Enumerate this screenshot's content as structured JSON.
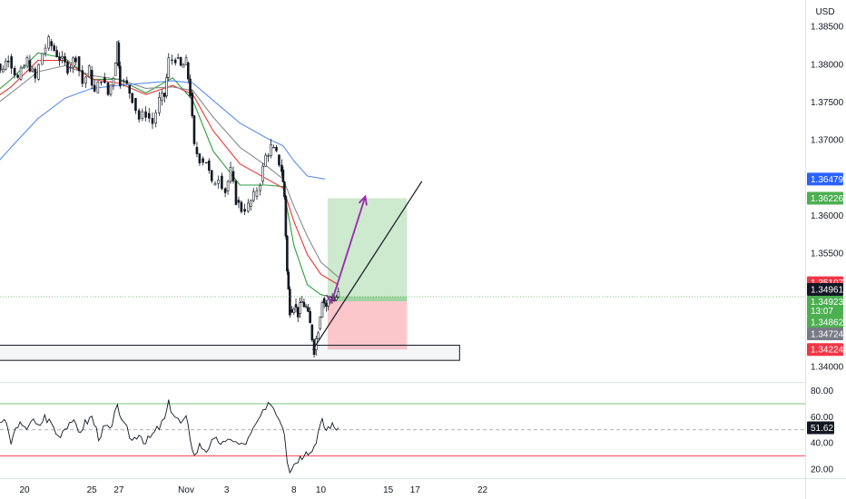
{
  "currency": "USD",
  "chart_data": [
    {
      "type": "candlestick",
      "title": "",
      "currency_label": "USD",
      "price_scale_ticks": [
        1.385,
        1.38,
        1.375,
        1.37,
        1.365,
        1.36,
        1.355,
        1.35,
        1.345,
        1.34
      ],
      "price_scale_labels": [
        "1.38500",
        "1.38000",
        "1.37500",
        "1.37000",
        "1.36500",
        "1.36000",
        "1.35500",
        "1.35000",
        "1.34500",
        "1.34000"
      ],
      "ylim": [
        1.3383,
        1.3885
      ],
      "x_ticks": [
        {
          "day": 20,
          "label": "20"
        },
        {
          "day": 25,
          "label": "25"
        },
        {
          "day": 27,
          "label": "27"
        },
        {
          "day": 32,
          "label": "Nov"
        },
        {
          "day": 35,
          "label": "3"
        },
        {
          "day": 40,
          "label": "8"
        },
        {
          "day": 42,
          "label": "10"
        },
        {
          "day": 47,
          "label": "15"
        },
        {
          "day": 49,
          "label": "17"
        },
        {
          "day": 54,
          "label": "22"
        }
      ],
      "price_path": [
        [
          17,
          1.3795
        ],
        [
          17.5,
          1.3825
        ],
        [
          18.2,
          1.379
        ],
        [
          18.8,
          1.381
        ],
        [
          19.5,
          1.378
        ],
        [
          20.2,
          1.3805
        ],
        [
          20.8,
          1.378
        ],
        [
          21.3,
          1.3815
        ],
        [
          21.8,
          1.383
        ],
        [
          22.6,
          1.3808
        ],
        [
          23.2,
          1.3795
        ],
        [
          23.8,
          1.381
        ],
        [
          24.3,
          1.3775
        ],
        [
          24.8,
          1.3792
        ],
        [
          25.2,
          1.3762
        ],
        [
          25.7,
          1.3782
        ],
        [
          26.2,
          1.376
        ],
        [
          26.6,
          1.3785
        ],
        [
          26.9,
          1.3828
        ],
        [
          27.1,
          1.3778
        ],
        [
          27.6,
          1.3772
        ],
        [
          28,
          1.3755
        ],
        [
          28.5,
          1.3728
        ],
        [
          29.0,
          1.3735
        ],
        [
          29.5,
          1.3722
        ],
        [
          30.0,
          1.3752
        ],
        [
          30.4,
          1.3758
        ],
        [
          30.7,
          1.3805
        ],
        [
          31.2,
          1.3808
        ],
        [
          31.6,
          1.3796
        ],
        [
          32.0,
          1.3802
        ],
        [
          32.3,
          1.3762
        ],
        [
          32.6,
          1.369
        ],
        [
          33.0,
          1.3675
        ],
        [
          33.5,
          1.3672
        ],
        [
          33.9,
          1.364
        ],
        [
          34.4,
          1.3652
        ],
        [
          34.9,
          1.3632
        ],
        [
          35.3,
          1.3658
        ],
        [
          35.7,
          1.362
        ],
        [
          36.1,
          1.3608
        ],
        [
          36.6,
          1.3612
        ],
        [
          37.0,
          1.3625
        ],
        [
          37.5,
          1.3645
        ],
        [
          37.9,
          1.3678
        ],
        [
          38.3,
          1.369
        ],
        [
          38.7,
          1.368
        ],
        [
          39.1,
          1.366
        ],
        [
          39.3,
          1.3625
        ],
        [
          39.5,
          1.3525
        ],
        [
          39.7,
          1.3475
        ],
        [
          40.0,
          1.3482
        ],
        [
          40.3,
          1.347
        ],
        [
          40.6,
          1.3485
        ],
        [
          40.9,
          1.3478
        ],
        [
          41.2,
          1.3455
        ],
        [
          41.5,
          1.3422
        ],
        [
          41.8,
          1.345
        ],
        [
          42.1,
          1.349
        ],
        [
          42.4,
          1.348
        ],
        [
          42.7,
          1.3492
        ],
        [
          43.0,
          1.3488
        ],
        [
          43.3,
          1.3495
        ]
      ],
      "moving_averages": [
        {
          "color": "#2e9e3e",
          "points": [
            [
              17,
              1.375
            ],
            [
              19,
              1.378
            ],
            [
              21,
              1.3815
            ],
            [
              23,
              1.3808
            ],
            [
              25,
              1.378
            ],
            [
              27,
              1.378
            ],
            [
              29,
              1.3762
            ],
            [
              31,
              1.3782
            ],
            [
              32.5,
              1.3752
            ],
            [
              34,
              1.3685
            ],
            [
              36,
              1.364
            ],
            [
              38,
              1.364
            ],
            [
              39.2,
              1.3638
            ],
            [
              40,
              1.356
            ],
            [
              41,
              1.3508
            ],
            [
              42,
              1.3495
            ],
            [
              43.3,
              1.349
            ]
          ]
        },
        {
          "color": "#e53935",
          "points": [
            [
              17,
              1.3745
            ],
            [
              19,
              1.377
            ],
            [
              21,
              1.3805
            ],
            [
              23,
              1.3805
            ],
            [
              25,
              1.378
            ],
            [
              27,
              1.3775
            ],
            [
              29,
              1.376
            ],
            [
              31,
              1.3772
            ],
            [
              32.5,
              1.376
            ],
            [
              34,
              1.3712
            ],
            [
              36,
              1.3668
            ],
            [
              38,
              1.3648
            ],
            [
              39.2,
              1.3636
            ],
            [
              40,
              1.3592
            ],
            [
              41,
              1.3548
            ],
            [
              42,
              1.3522
            ],
            [
              43.3,
              1.3508
            ]
          ]
        },
        {
          "color": "#8a8a8a",
          "points": [
            [
              17,
              1.3735
            ],
            [
              19,
              1.3762
            ],
            [
              21,
              1.379
            ],
            [
              23,
              1.3798
            ],
            [
              25,
              1.3785
            ],
            [
              27,
              1.378
            ],
            [
              29,
              1.3768
            ],
            [
              31,
              1.377
            ],
            [
              32.5,
              1.3765
            ],
            [
              34,
              1.373
            ],
            [
              36,
              1.369
            ],
            [
              38,
              1.3665
            ],
            [
              39.2,
              1.3648
            ],
            [
              40,
              1.3612
            ],
            [
              41,
              1.3572
            ],
            [
              42,
              1.3538
            ],
            [
              43.3,
              1.3518
            ]
          ]
        },
        {
          "color": "#5b8def",
          "points": [
            [
              17,
              1.365
            ],
            [
              19,
              1.369
            ],
            [
              21,
              1.3728
            ],
            [
              23,
              1.3755
            ],
            [
              25,
              1.3768
            ],
            [
              27,
              1.3772
            ],
            [
              29,
              1.3775
            ],
            [
              31,
              1.3778
            ],
            [
              32.5,
              1.3775
            ],
            [
              34,
              1.3752
            ],
            [
              36,
              1.3722
            ],
            [
              38,
              1.3702
            ],
            [
              39.2,
              1.3692
            ],
            [
              40,
              1.3672
            ],
            [
              41,
              1.3652
            ],
            [
              42.3,
              1.3648
            ]
          ]
        }
      ],
      "trade_position": {
        "entry": 1.34862,
        "target": 1.36226,
        "stop": 1.34224,
        "from_day": 42.5,
        "to_day": 48.4
      },
      "support_zone": {
        "top": 1.3428,
        "bottom": 1.3408,
        "from_day": 17,
        "to_day": 52.3
      },
      "trendline": {
        "from": [
          41.4,
          1.3422
        ],
        "to": [
          49.5,
          1.3645
        ]
      },
      "projection_arrow": {
        "from": [
          42.8,
          1.3485
        ],
        "via": [
          43.0,
          1.3482
        ],
        "to": [
          45.3,
          1.3625
        ]
      },
      "last_price_line": 1.34923,
      "price_badges": [
        {
          "value": 1.36479,
          "label": "1.36479",
          "color": "#2962ff"
        },
        {
          "value": 1.36226,
          "label": "1.36226",
          "color": "#4caf50"
        },
        {
          "value": 1.35107,
          "label": "1.35107",
          "color": "#f23645"
        },
        {
          "value": 1.34961,
          "label": "1.34961",
          "color": "#131722"
        },
        {
          "value": 1.34862,
          "label": "1.34862",
          "color": "#4caf50"
        },
        {
          "value": 1.34724,
          "label": "1.34724",
          "color": "#787b86"
        },
        {
          "value": 1.34224,
          "label": "1.34224",
          "color": "#f23645"
        }
      ],
      "last_price_badge": {
        "value": 1.34923,
        "label": "1.34923",
        "countdown": "13:07",
        "color": "#4caf50"
      }
    },
    {
      "type": "line",
      "title": "",
      "ylim": [
        13,
        86
      ],
      "y_ticks": [
        80,
        60,
        40,
        20
      ],
      "y_tick_labels": [
        "80.00",
        "60.00",
        "40.00",
        "20.00"
      ],
      "overbought": 70,
      "oversold": 30,
      "middle": 50,
      "current": 51.62,
      "current_label": "51.62",
      "points": [
        [
          17,
          68
        ],
        [
          17.5,
          62
        ],
        [
          18,
          55
        ],
        [
          18.5,
          58
        ],
        [
          19,
          40
        ],
        [
          19.5,
          55
        ],
        [
          20,
          50
        ],
        [
          20.5,
          58
        ],
        [
          21,
          52
        ],
        [
          21.5,
          60
        ],
        [
          22,
          55
        ],
        [
          22.5,
          45
        ],
        [
          23,
          52
        ],
        [
          23.5,
          58
        ],
        [
          24,
          48
        ],
        [
          24.5,
          55
        ],
        [
          25,
          60
        ],
        [
          25.5,
          45
        ],
        [
          26,
          52
        ],
        [
          26.5,
          50
        ],
        [
          26.9,
          72
        ],
        [
          27.2,
          55
        ],
        [
          27.6,
          50
        ],
        [
          28,
          42
        ],
        [
          28.5,
          48
        ],
        [
          29,
          40
        ],
        [
          29.5,
          46
        ],
        [
          30,
          52
        ],
        [
          30.4,
          58
        ],
        [
          30.7,
          70
        ],
        [
          31.2,
          60
        ],
        [
          31.6,
          55
        ],
        [
          32.0,
          58
        ],
        [
          32.3,
          45
        ],
        [
          32.6,
          30
        ],
        [
          33.0,
          38
        ],
        [
          33.5,
          35
        ],
        [
          33.9,
          40
        ],
        [
          34.4,
          42
        ],
        [
          34.9,
          38
        ],
        [
          35.3,
          45
        ],
        [
          35.7,
          40
        ],
        [
          36.1,
          38
        ],
        [
          36.6,
          42
        ],
        [
          37.0,
          50
        ],
        [
          37.5,
          60
        ],
        [
          37.9,
          64
        ],
        [
          38.3,
          72
        ],
        [
          38.7,
          62
        ],
        [
          39.1,
          56
        ],
        [
          39.3,
          48
        ],
        [
          39.5,
          28
        ],
        [
          39.7,
          20
        ],
        [
          40.0,
          24
        ],
        [
          40.3,
          28
        ],
        [
          40.6,
          30
        ],
        [
          40.9,
          36
        ],
        [
          41.2,
          32
        ],
        [
          41.5,
          38
        ],
        [
          41.8,
          48
        ],
        [
          42.1,
          56
        ],
        [
          42.4,
          50
        ],
        [
          42.7,
          54
        ],
        [
          43.0,
          52
        ],
        [
          43.3,
          52
        ]
      ]
    }
  ]
}
